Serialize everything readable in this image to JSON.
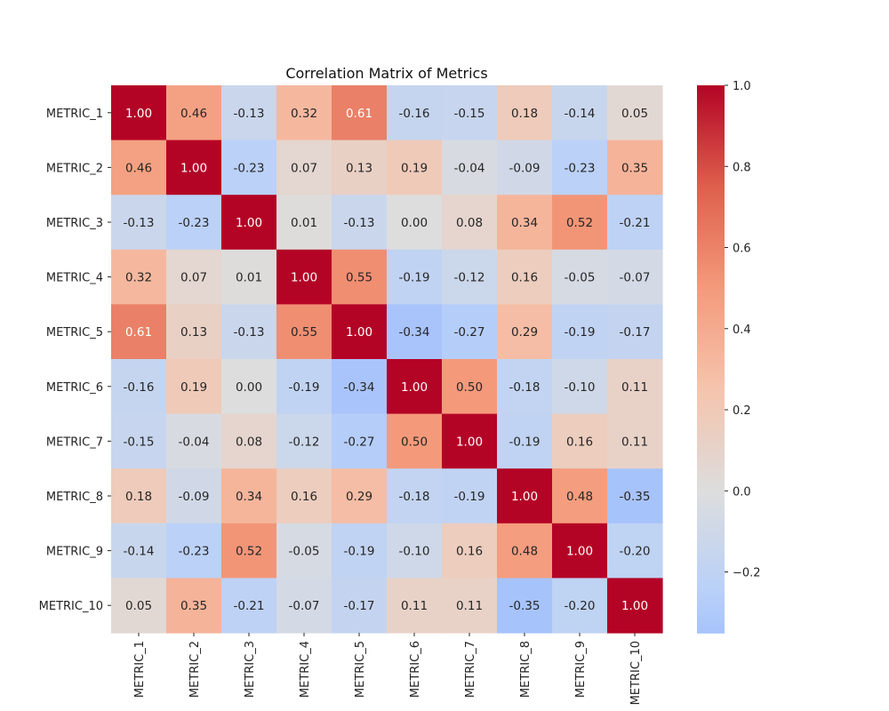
{
  "chart_data": {
    "type": "heatmap",
    "title": "Correlation Matrix of Metrics",
    "row_labels": [
      "METRIC_1",
      "METRIC_2",
      "METRIC_3",
      "METRIC_4",
      "METRIC_5",
      "METRIC_6",
      "METRIC_7",
      "METRIC_8",
      "METRIC_9",
      "METRIC_10"
    ],
    "col_labels": [
      "METRIC_1",
      "METRIC_2",
      "METRIC_3",
      "METRIC_4",
      "METRIC_5",
      "METRIC_6",
      "METRIC_7",
      "METRIC_8",
      "METRIC_9",
      "METRIC_10"
    ],
    "values": [
      [
        1.0,
        0.46,
        -0.13,
        0.32,
        0.61,
        -0.16,
        -0.15,
        0.18,
        -0.14,
        0.05
      ],
      [
        0.46,
        1.0,
        -0.23,
        0.07,
        0.13,
        0.19,
        -0.04,
        -0.09,
        -0.23,
        0.35
      ],
      [
        -0.13,
        -0.23,
        1.0,
        0.01,
        -0.13,
        0.0,
        0.08,
        0.34,
        0.52,
        -0.21
      ],
      [
        0.32,
        0.07,
        0.01,
        1.0,
        0.55,
        -0.19,
        -0.12,
        0.16,
        -0.05,
        -0.07
      ],
      [
        0.61,
        0.13,
        -0.13,
        0.55,
        1.0,
        -0.34,
        -0.27,
        0.29,
        -0.19,
        -0.17
      ],
      [
        -0.16,
        0.19,
        0.0,
        -0.19,
        -0.34,
        1.0,
        0.5,
        -0.18,
        -0.1,
        0.11
      ],
      [
        -0.15,
        -0.04,
        0.08,
        -0.12,
        -0.27,
        0.5,
        1.0,
        -0.19,
        0.16,
        0.11
      ],
      [
        0.18,
        -0.09,
        0.34,
        0.16,
        0.29,
        -0.18,
        -0.19,
        1.0,
        0.48,
        -0.35
      ],
      [
        -0.14,
        -0.23,
        0.52,
        -0.05,
        -0.19,
        -0.1,
        0.16,
        0.48,
        1.0,
        -0.2
      ],
      [
        0.05,
        0.35,
        -0.21,
        -0.07,
        -0.17,
        0.11,
        0.11,
        -0.35,
        -0.2,
        1.0
      ]
    ],
    "colormap": "coolwarm",
    "color_center": 0.0,
    "color_range": [
      -0.35,
      1.0
    ],
    "colorbar_ticks": [
      1.0,
      0.8,
      0.6,
      0.4,
      0.2,
      0.0,
      -0.2
    ],
    "colorbar_tick_labels": [
      "1.0",
      "0.8",
      "0.6",
      "0.4",
      "0.2",
      "0.0",
      "−0.2"
    ],
    "annotations_format": "2 decimals",
    "grid": false,
    "colorbar_placement": "right"
  }
}
